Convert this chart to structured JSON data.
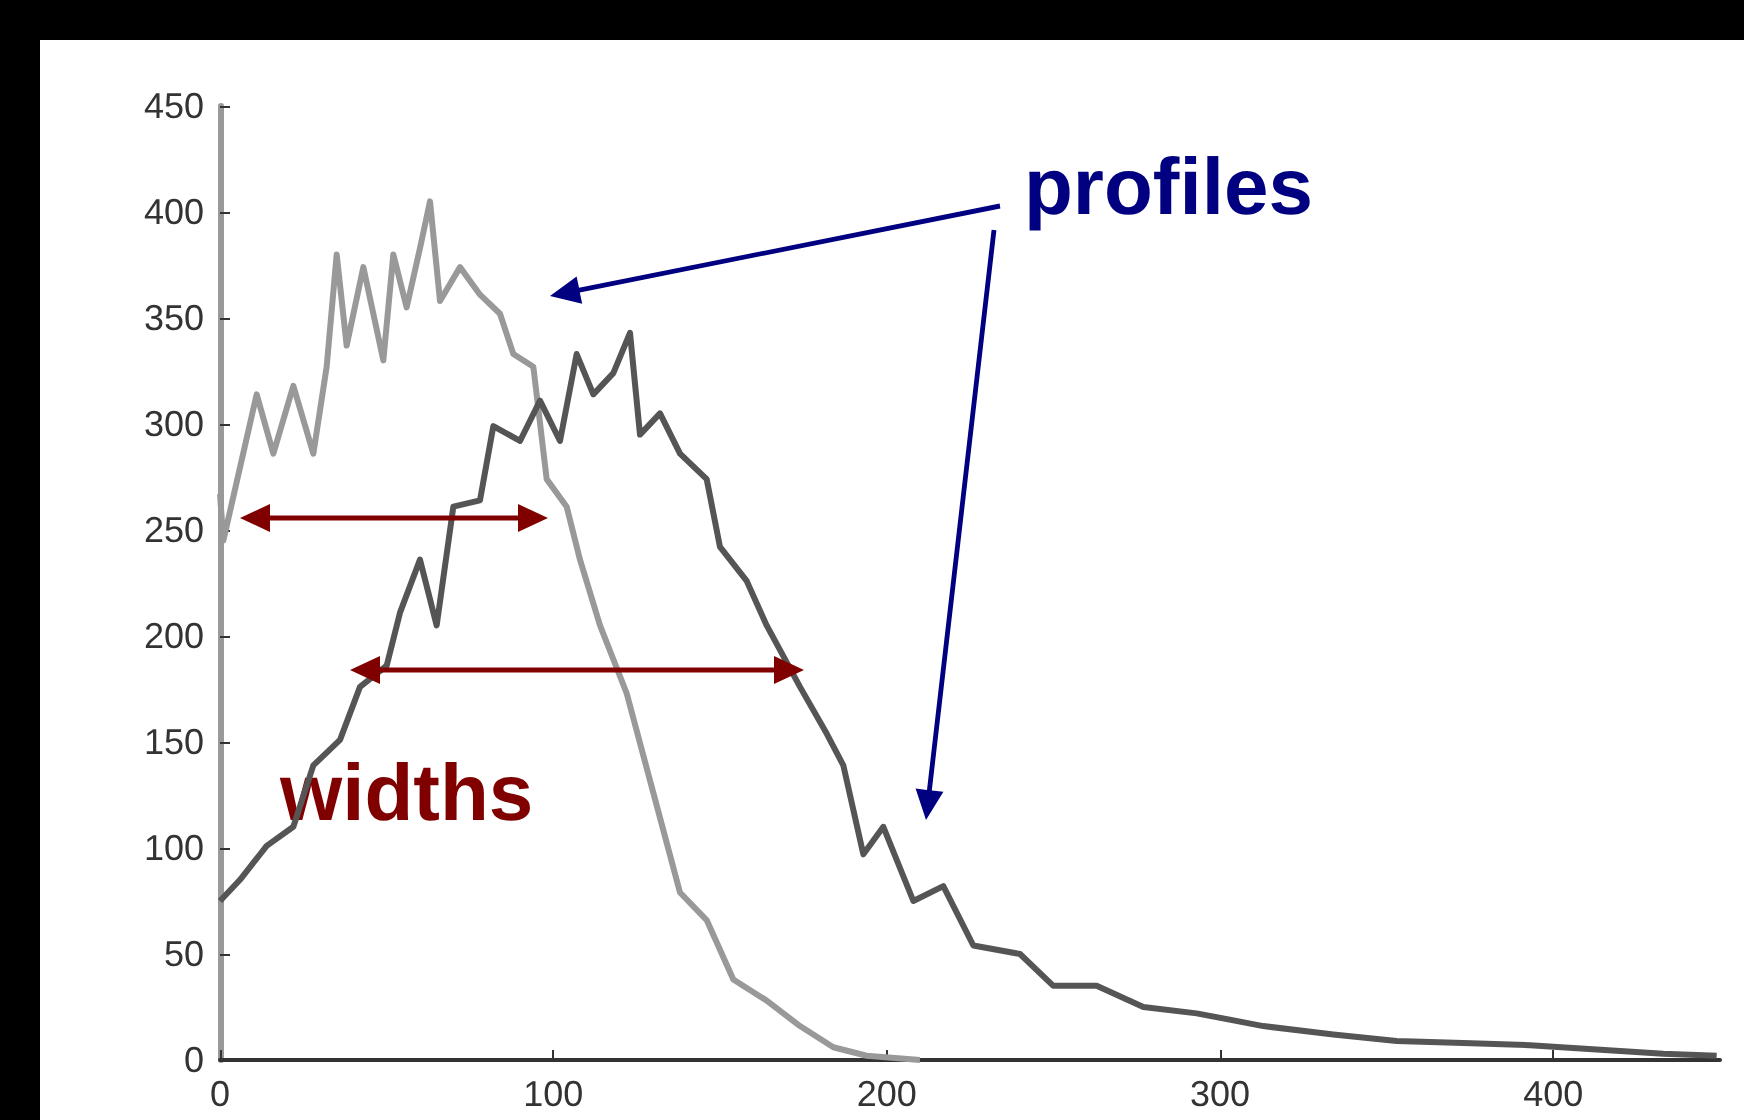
{
  "chart_data": {
    "type": "line",
    "annotations": [
      "profiles",
      "widths"
    ],
    "series": [
      {
        "color": "#999999",
        "x": [
          0,
          1,
          11,
          16,
          22,
          28,
          32,
          35,
          38,
          43,
          49,
          52,
          56,
          60,
          63,
          66,
          72,
          78,
          84,
          88,
          94,
          98,
          104,
          108,
          114,
          122,
          130,
          138,
          146,
          154,
          164,
          174,
          184,
          194,
          210
        ],
        "values": [
          267,
          245,
          314,
          286,
          318,
          286,
          327,
          380,
          337,
          374,
          330,
          380,
          355,
          383,
          405,
          358,
          374,
          361,
          352,
          333,
          327,
          274,
          261,
          236,
          205,
          173,
          126,
          79,
          66,
          38,
          28,
          16,
          6,
          2,
          0
        ]
      },
      {
        "color": "#555555",
        "x": [
          0,
          6,
          14,
          22,
          28,
          36,
          42,
          50,
          54,
          60,
          65,
          70,
          78,
          82,
          90,
          96,
          102,
          107,
          112,
          118,
          123,
          126,
          132,
          138,
          146,
          150,
          158,
          164,
          174,
          182,
          187,
          193,
          199,
          208,
          217,
          226,
          240,
          250,
          263,
          277,
          293,
          313,
          334,
          353,
          373,
          393,
          413,
          433,
          449
        ],
        "values": [
          75,
          85,
          101,
          110,
          139,
          151,
          176,
          186,
          211,
          236,
          205,
          261,
          264,
          299,
          292,
          311,
          292,
          333,
          314,
          324,
          343,
          295,
          305,
          286,
          274,
          242,
          226,
          205,
          176,
          154,
          139,
          97,
          110,
          75,
          82,
          54,
          50,
          35,
          35,
          25,
          22,
          16,
          12,
          9,
          8,
          7,
          5,
          3,
          2
        ]
      }
    ],
    "xlim": [
      0,
      450
    ],
    "xticks": [
      0,
      100,
      200,
      300,
      400
    ],
    "ylim": [
      0,
      450
    ],
    "yticks": [
      0,
      50,
      100,
      150,
      200,
      250,
      300,
      350,
      400,
      450
    ],
    "grid": false,
    "marker": "none",
    "line_style": "solid"
  }
}
